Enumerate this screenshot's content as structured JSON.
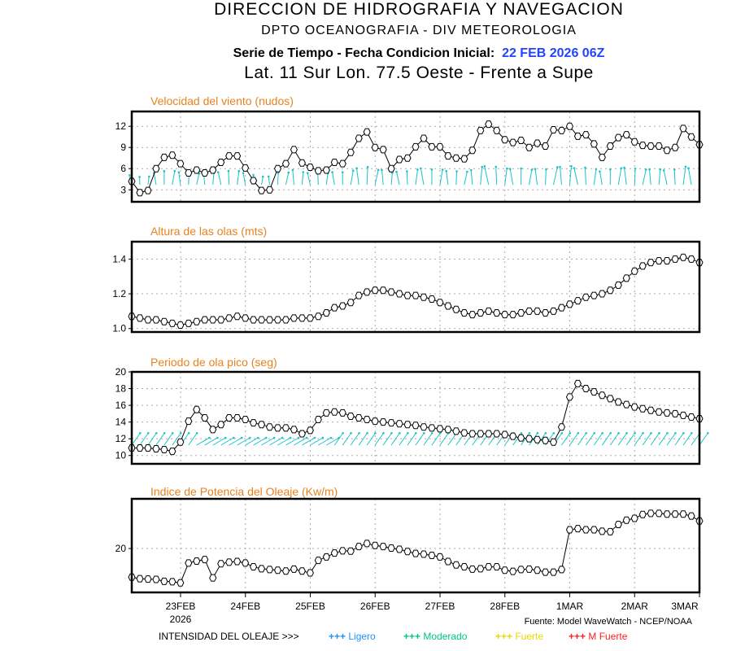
{
  "header": {
    "line1": "DIRECCION DE HIDROGRAFIA Y NAVEGACION",
    "line2": "DPTO OCEANOGRAFIA - DIV METEOROLOGIA",
    "line3_label": "Serie de Tiempo - Fecha Condicion Inicial:",
    "line3_date": "22 FEB 2026 06Z",
    "line4": "Lat. 11 Sur  Lon. 77.5 Oeste - Frente a Supe"
  },
  "colors": {
    "title_orange": "#e8821e",
    "date_blue": "#2244ff",
    "arrow_cyan": "#18c4c8",
    "ligero": "#1e90ff",
    "moderado": "#00c87a",
    "fuerte": "#e6d800",
    "m_fuerte": "#ff2020"
  },
  "x_axis": {
    "range": [
      "22FEB2026 06Z",
      "3MAR2026 00Z"
    ],
    "step_hours": 3,
    "ticks": [
      "23FEB",
      "24FEB",
      "25FEB",
      "26FEB",
      "27FEB",
      "28FEB",
      "1MAR",
      "2MAR",
      "3MAR"
    ],
    "year_label": "2026"
  },
  "chart_data": [
    {
      "type": "line",
      "title": "Velocidad del viento (nudos)",
      "ylim": [
        1.3,
        14.1
      ],
      "yticks": [
        "3",
        "6",
        "9",
        "12"
      ],
      "ytick_values": [
        3,
        6,
        9,
        12
      ],
      "grid": true,
      "values": [
        4.2,
        2.6,
        2.9,
        6.0,
        7.6,
        7.9,
        6.7,
        5.4,
        5.8,
        5.4,
        5.8,
        6.9,
        7.8,
        7.8,
        6.1,
        4.3,
        2.9,
        3.0,
        6.0,
        6.7,
        8.7,
        6.8,
        6.2,
        5.7,
        5.8,
        6.9,
        6.7,
        8.3,
        10.3,
        11.2,
        9.0,
        8.7,
        6.0,
        7.3,
        7.5,
        9.1,
        10.3,
        9.1,
        9.1,
        7.8,
        7.5,
        7.4,
        8.6,
        11.4,
        12.3,
        11.4,
        10.1,
        9.7,
        10.0,
        9.0,
        9.6,
        9.2,
        11.5,
        11.4,
        12.0,
        10.6,
        10.8,
        9.5,
        7.6,
        9.2,
        10.4,
        10.8,
        9.8,
        9.3,
        9.2,
        9.2,
        8.6,
        9.0,
        11.7,
        10.5,
        9.4
      ],
      "arrows": {
        "kind": "wind direction",
        "direction_deg_approx": 180
      }
    },
    {
      "type": "line",
      "title": "Altura de las olas (mts)",
      "ylim": [
        0.98,
        1.5
      ],
      "yticks": [
        "1.0",
        "1.2",
        "1.4"
      ],
      "ytick_values": [
        1.0,
        1.2,
        1.4
      ],
      "grid": true,
      "values": [
        1.07,
        1.06,
        1.05,
        1.05,
        1.04,
        1.03,
        1.02,
        1.03,
        1.04,
        1.05,
        1.05,
        1.05,
        1.06,
        1.07,
        1.06,
        1.05,
        1.05,
        1.05,
        1.05,
        1.05,
        1.06,
        1.06,
        1.06,
        1.07,
        1.09,
        1.12,
        1.13,
        1.15,
        1.19,
        1.21,
        1.22,
        1.22,
        1.21,
        1.2,
        1.19,
        1.19,
        1.18,
        1.17,
        1.15,
        1.13,
        1.11,
        1.09,
        1.08,
        1.09,
        1.1,
        1.09,
        1.08,
        1.08,
        1.09,
        1.1,
        1.1,
        1.09,
        1.1,
        1.12,
        1.14,
        1.16,
        1.18,
        1.19,
        1.2,
        1.22,
        1.25,
        1.29,
        1.33,
        1.36,
        1.38,
        1.39,
        1.39,
        1.4,
        1.41,
        1.4,
        1.38
      ]
    },
    {
      "type": "line",
      "title": "Periodo de ola pico (seg)",
      "ylim": [
        9,
        20
      ],
      "yticks": [
        "10",
        "12",
        "14",
        "16",
        "18",
        "20"
      ],
      "ytick_values": [
        10,
        12,
        14,
        16,
        18,
        20
      ],
      "grid": true,
      "values": [
        10.9,
        10.9,
        10.9,
        10.8,
        10.7,
        10.5,
        11.6,
        14.1,
        15.5,
        14.5,
        13.1,
        13.7,
        14.5,
        14.5,
        14.3,
        13.9,
        13.7,
        13.4,
        13.3,
        13.3,
        13.1,
        12.6,
        13.0,
        14.3,
        15.1,
        15.2,
        15.1,
        14.7,
        14.5,
        14.3,
        14.1,
        14.0,
        13.9,
        13.8,
        13.7,
        13.6,
        13.4,
        13.3,
        13.2,
        13.1,
        12.9,
        12.7,
        12.6,
        12.6,
        12.6,
        12.6,
        12.5,
        12.3,
        12.1,
        12.0,
        11.9,
        11.8,
        11.6,
        13.4,
        17.0,
        18.6,
        18.0,
        17.6,
        17.2,
        16.8,
        16.4,
        16.1,
        15.8,
        15.6,
        15.4,
        15.2,
        15.1,
        15.0,
        14.8,
        14.6,
        14.4
      ],
      "arrows": {
        "kind": "wave direction",
        "direction_deg_approx": 225
      }
    },
    {
      "type": "line",
      "title": "Indice de Potencia del Oleaje (Kw/m)",
      "ylim": [
        8.5,
        33
      ],
      "yticks": [
        "20"
      ],
      "ytick_values": [
        20
      ],
      "grid": true,
      "values": [
        12.5,
        12.1,
        12.0,
        11.9,
        11.4,
        11.3,
        11.0,
        16.2,
        16.7,
        17.1,
        12.3,
        16.0,
        16.4,
        16.6,
        16.2,
        15.2,
        14.7,
        14.5,
        14.3,
        14.1,
        14.6,
        14.1,
        13.6,
        16.9,
        17.8,
        18.8,
        19.4,
        19.3,
        20.5,
        21.3,
        20.8,
        20.5,
        20.1,
        19.8,
        19.2,
        18.7,
        18.5,
        18.2,
        17.8,
        16.6,
        15.7,
        15.2,
        14.6,
        14.7,
        15.2,
        15.2,
        14.3,
        14.0,
        14.5,
        14.6,
        14.3,
        13.8,
        13.8,
        14.5,
        24.9,
        25.2,
        24.9,
        24.9,
        24.5,
        24.4,
        26.3,
        27.4,
        27.9,
        28.9,
        29.2,
        29.2,
        29.0,
        29.0,
        29.0,
        28.5,
        27.2
      ]
    }
  ],
  "footer": {
    "source": "Fuente: Model WaveWatch - NCEP/NOAA",
    "legend_label": "INTENSIDAD DEL OLEAJE >>>",
    "legend_items": [
      {
        "symbol": "+++",
        "label": "Ligero",
        "color": "#1e90ff"
      },
      {
        "symbol": "+++",
        "label": "Moderado",
        "color": "#00c87a"
      },
      {
        "symbol": "+++",
        "label": "Fuerte",
        "color": "#e6d800"
      },
      {
        "symbol": "+++",
        "label": "M Fuerte",
        "color": "#ff2020"
      }
    ]
  }
}
